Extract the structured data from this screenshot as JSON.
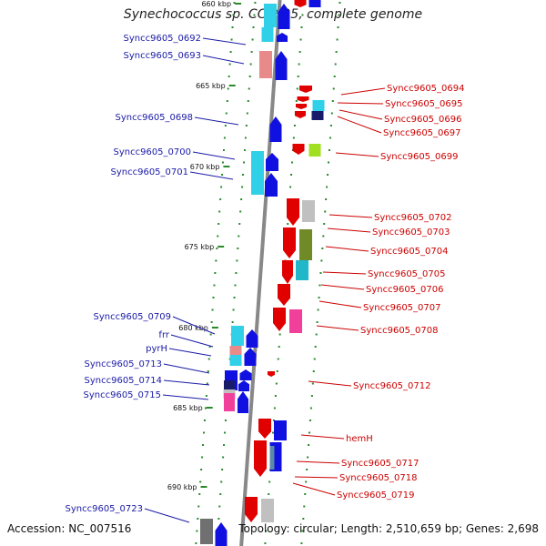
{
  "title": "Synechococcus sp. CC9605, complete genome",
  "accession": "Accession: NC_007516",
  "summary": "Topology: circular; Length: 2,510,659 bp; Genes: 2,698",
  "colors": {
    "backbone": "#888888",
    "tick": "#2a8a2a",
    "left_labels": "#1a1aa8",
    "right_labels": "#cc0000"
  },
  "position_labels": [
    "660 kbp",
    "665 kbp",
    "670 kbp",
    "675 kbp",
    "680 kbp",
    "685 kbp",
    "690 kbp"
  ],
  "left_genes": [
    "Syncc9605_0692",
    "Syncc9605_0693",
    "Syncc9605_0698",
    "Syncc9605_0700",
    "Syncc9605_0701",
    "Syncc9605_0709",
    "frr",
    "pyrH",
    "Syncc9605_0713",
    "Syncc9605_0714",
    "Syncc9605_0715",
    "Syncc9605_0723"
  ],
  "right_genes": [
    "Syncc9605_0694",
    "Syncc9605_0695",
    "Syncc9605_0696",
    "Syncc9605_0697",
    "Syncc9605_0699",
    "Syncc9605_0702",
    "Syncc9605_0703",
    "Syncc9605_0704",
    "Syncc9605_0705",
    "Syncc9605_0706",
    "Syncc9605_0707",
    "Syncc9605_0708",
    "Syncc9605_0712",
    "hemH",
    "Syncc9605_0717",
    "Syncc9605_0718",
    "Syncc9605_0719"
  ]
}
